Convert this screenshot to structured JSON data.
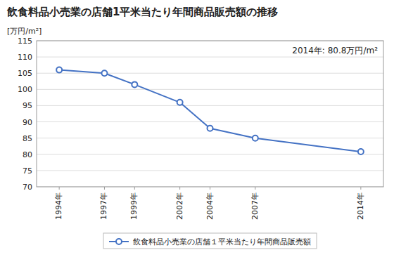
{
  "chart_data": {
    "type": "line",
    "title": "飲食料品小売業の店舗1平米当たり年間商品販売額の推移",
    "y_label": "[万円/m²]",
    "annotation": "2014年: 80.8万円/m²",
    "x": [
      1994,
      1997,
      1999,
      2002,
      2004,
      2007,
      2014
    ],
    "series": [
      {
        "name": "飲食料品小売業の店舗１平米当たり年間商品販売額",
        "color": "#4472C4",
        "marker": "circle",
        "values": [
          106.0,
          105.0,
          101.5,
          96.0,
          88.0,
          85.0,
          80.8
        ]
      }
    ],
    "xlim": [
      1992.5,
      2015.5
    ],
    "xticks": [
      {
        "value": 1994,
        "label": "1994年"
      },
      {
        "value": 1997,
        "label": "1997年"
      },
      {
        "value": 1999,
        "label": "1999年"
      },
      {
        "value": 2002,
        "label": "2002年"
      },
      {
        "value": 2004,
        "label": "2004年"
      },
      {
        "value": 2007,
        "label": "2007年"
      },
      {
        "value": 2014,
        "label": "2014年"
      }
    ],
    "ylim": [
      70,
      115
    ],
    "yticks": [
      70,
      75,
      80,
      85,
      90,
      95,
      100,
      105,
      110,
      115
    ],
    "grid": true,
    "legend": "bottom"
  }
}
